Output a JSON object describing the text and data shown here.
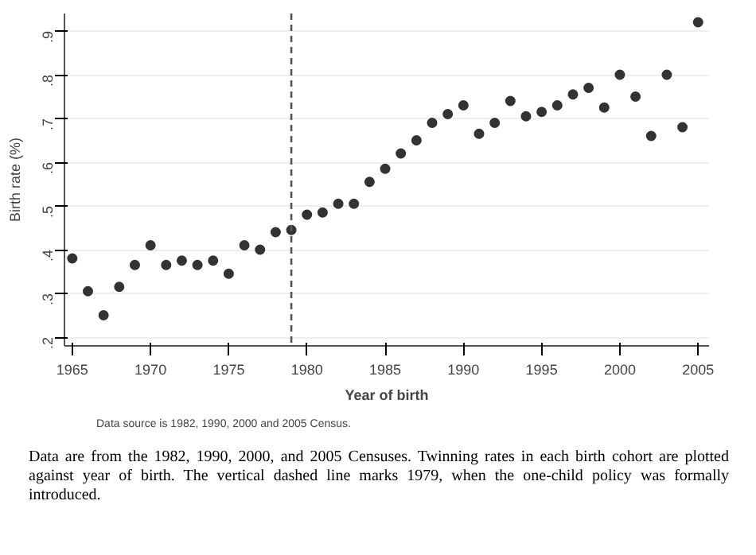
{
  "chart_data": {
    "type": "scatter",
    "xlabel": "Year of birth",
    "ylabel": "Birth rate (%)",
    "x": [
      1965,
      1966,
      1967,
      1968,
      1969,
      1970,
      1971,
      1972,
      1973,
      1974,
      1975,
      1976,
      1977,
      1978,
      1979,
      1980,
      1981,
      1982,
      1983,
      1984,
      1985,
      1986,
      1987,
      1988,
      1989,
      1990,
      1991,
      1992,
      1993,
      1994,
      1995,
      1996,
      1997,
      1998,
      1999,
      2000,
      2001,
      2002,
      2003,
      2004,
      2005
    ],
    "series": [
      {
        "color": "#333333",
        "values": [
          0.38,
          0.305,
          0.25,
          0.315,
          0.365,
          0.41,
          0.365,
          0.375,
          0.365,
          0.375,
          0.345,
          0.41,
          0.4,
          0.44,
          0.445,
          0.48,
          0.485,
          0.505,
          0.505,
          0.555,
          0.585,
          0.62,
          0.65,
          0.69,
          0.71,
          0.73,
          0.665,
          0.69,
          0.74,
          0.705,
          0.715,
          0.73,
          0.755,
          0.77,
          0.725,
          0.8,
          0.75,
          0.66,
          0.8,
          0.68,
          0.92
        ]
      }
    ],
    "xlim": [
      1964.5,
      2005.7
    ],
    "ylim": [
      0.18,
      0.94
    ],
    "xticks": [
      1965,
      1970,
      1975,
      1980,
      1985,
      1990,
      1995,
      2000,
      2005
    ],
    "yticks": [
      {
        "value": 0.2,
        "label": ".2"
      },
      {
        "value": 0.3,
        "label": ".3"
      },
      {
        "value": 0.4,
        "label": ".4"
      },
      {
        "value": 0.5,
        "label": ".5"
      },
      {
        "value": 0.6,
        "label": ".6"
      },
      {
        "value": 0.7,
        "label": ".7"
      },
      {
        "value": 0.8,
        "label": ".8"
      },
      {
        "value": 0.9,
        "label": ".9"
      }
    ],
    "ref_lines": [
      {
        "axis": "x",
        "value": 1979,
        "color": "#555555",
        "line_style": "dashed"
      }
    ],
    "grid": "y",
    "marker": "circle",
    "annotations": [
      "Data source is 1982, 1990, 2000 and 2005 Census.",
      "Data are from the 1982, 1990, 2000, and 2005 Censuses. Twinning rates in each birth cohort are plotted against year of birth. The vertical dashed line marks 1979, when the one-child policy was formally introduced."
    ]
  }
}
